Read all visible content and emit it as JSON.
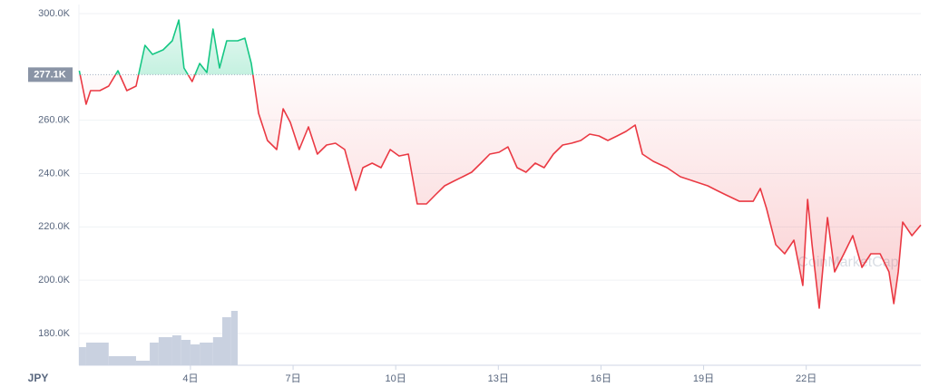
{
  "chart_data": {
    "type": "line",
    "currency": "JPY",
    "watermark": "CoinMarketCap",
    "baseline": {
      "value": 277100,
      "label": "277.1K"
    },
    "above_color": "#16c784",
    "below_color": "#ea3943",
    "volume_color": "#c9d1e0",
    "grid": true,
    "xlim": [
      0.74,
      25.35
    ],
    "ylim": [
      168100,
      303400
    ],
    "xticks": [
      {
        "value": 4,
        "label": "4日"
      },
      {
        "value": 7,
        "label": "7日"
      },
      {
        "value": 10,
        "label": "10日"
      },
      {
        "value": 13,
        "label": "13日"
      },
      {
        "value": 16,
        "label": "16日"
      },
      {
        "value": 19,
        "label": "19日"
      },
      {
        "value": 22,
        "label": "22日"
      }
    ],
    "yticks": [
      {
        "value": 180000,
        "label": "180.0K"
      },
      {
        "value": 200000,
        "label": "200.0K"
      },
      {
        "value": 220000,
        "label": "220.0K"
      },
      {
        "value": 240000,
        "label": "240.0K"
      },
      {
        "value": 260000,
        "label": "260.0K"
      },
      {
        "value": 300000,
        "label": "300.0K"
      }
    ],
    "x": [
      0.75,
      0.95,
      1.08,
      1.35,
      1.61,
      1.88,
      2.14,
      2.41,
      2.67,
      2.89,
      3.2,
      3.47,
      3.66,
      3.81,
      4.05,
      4.27,
      4.48,
      4.66,
      4.85,
      5.06,
      5.38,
      5.59,
      5.78,
      5.99,
      6.25,
      6.52,
      6.71,
      6.92,
      7.18,
      7.45,
      7.71,
      7.98,
      8.24,
      8.51,
      8.83,
      9.04,
      9.31,
      9.57,
      9.84,
      10.1,
      10.37,
      10.63,
      10.9,
      11.16,
      11.43,
      11.69,
      11.96,
      12.22,
      12.49,
      12.75,
      13.02,
      13.28,
      13.55,
      13.81,
      14.08,
      14.34,
      14.61,
      14.88,
      15.14,
      15.41,
      15.67,
      15.94,
      16.2,
      16.47,
      16.73,
      17.0,
      17.21,
      17.53,
      17.93,
      18.32,
      18.72,
      19.12,
      19.38,
      19.65,
      20.05,
      20.45,
      20.66,
      20.84,
      21.11,
      21.37,
      21.64,
      21.9,
      22.04,
      22.17,
      22.38,
      22.62,
      22.83,
      23.1,
      23.36,
      23.63,
      23.89,
      24.16,
      24.42,
      24.56,
      24.69,
      24.82,
      25.09,
      25.35
    ],
    "values": [
      278600,
      266000,
      271100,
      271100,
      272800,
      278600,
      271100,
      272800,
      288100,
      284700,
      286400,
      289800,
      297600,
      279600,
      274500,
      281300,
      277900,
      294200,
      279600,
      289800,
      289800,
      290800,
      281300,
      262600,
      252400,
      249000,
      264300,
      259200,
      249000,
      257500,
      247300,
      250700,
      251400,
      249000,
      233700,
      242200,
      243900,
      242200,
      249000,
      246600,
      247300,
      228600,
      228600,
      232000,
      235400,
      237100,
      238800,
      240500,
      243900,
      247300,
      248000,
      250000,
      242200,
      240500,
      243900,
      242200,
      247300,
      250700,
      251400,
      252400,
      254800,
      254100,
      252400,
      254100,
      255800,
      258200,
      247300,
      244600,
      242200,
      238800,
      237100,
      235400,
      233700,
      232000,
      229600,
      229600,
      234400,
      226900,
      213300,
      209900,
      215000,
      198000,
      230300,
      213300,
      189500,
      223500,
      203100,
      209900,
      216700,
      204800,
      209900,
      209900,
      203100,
      191200,
      203100,
      221800,
      216700,
      220700
    ],
    "volume": {
      "bins": [
        0.74,
        0.95,
        1.61,
        2.41,
        2.81,
        3.07,
        3.47,
        3.73,
        4.0,
        4.27,
        4.66,
        4.93,
        5.19,
        5.38
      ],
      "values": [
        20,
        25,
        10,
        5,
        25,
        31,
        33,
        28,
        23,
        25,
        31,
        53,
        60
      ]
    }
  }
}
